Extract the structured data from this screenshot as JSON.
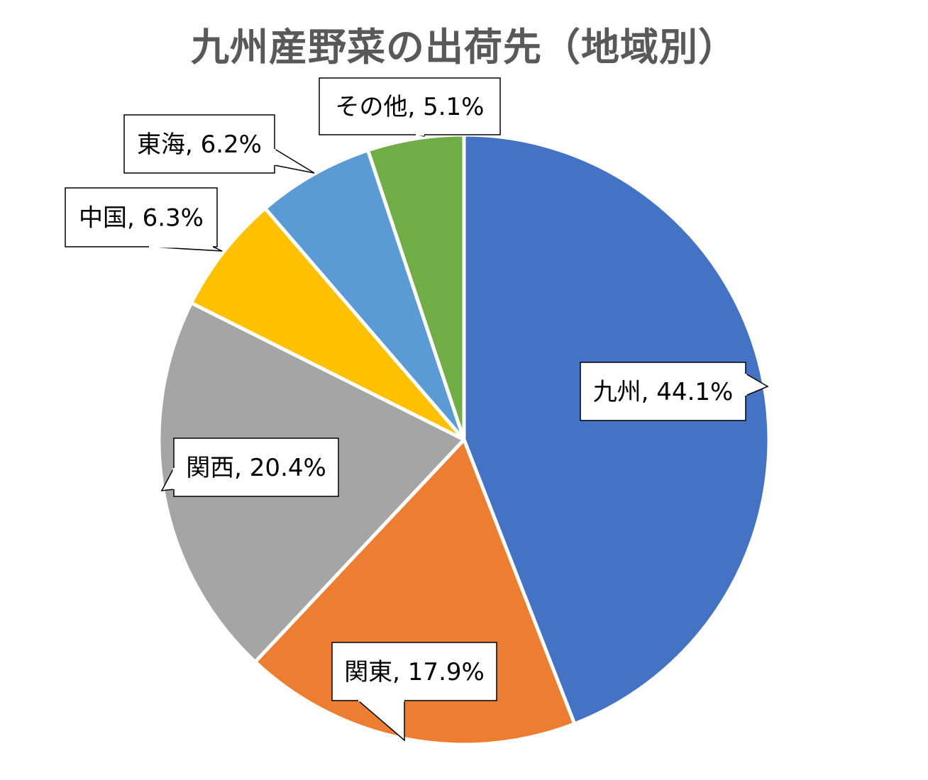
{
  "chart_data": {
    "type": "pie",
    "title": "九州産野菜の出荷先（地域別）",
    "slices": [
      {
        "name": "九州",
        "value": 44.1,
        "label": "九州, 44.1%",
        "color": "#4472C4"
      },
      {
        "name": "関東",
        "value": 17.9,
        "label": "関東, 17.9%",
        "color": "#ED7D31"
      },
      {
        "name": "関西",
        "value": 20.4,
        "label": "関西, 20.4%",
        "color": "#A5A5A5"
      },
      {
        "name": "中国",
        "value": 6.3,
        "label": "中国, 6.3%",
        "color": "#FFC000"
      },
      {
        "name": "東海",
        "value": 6.2,
        "label": "東海, 6.2%",
        "color": "#5B9BD5"
      },
      {
        "name": "その他",
        "value": 5.1,
        "label": "その他, 5.1%",
        "color": "#70AD47"
      }
    ],
    "start_angle_deg": 0,
    "direction": "clockwise",
    "legend": "none",
    "data_labels": "callouts"
  }
}
